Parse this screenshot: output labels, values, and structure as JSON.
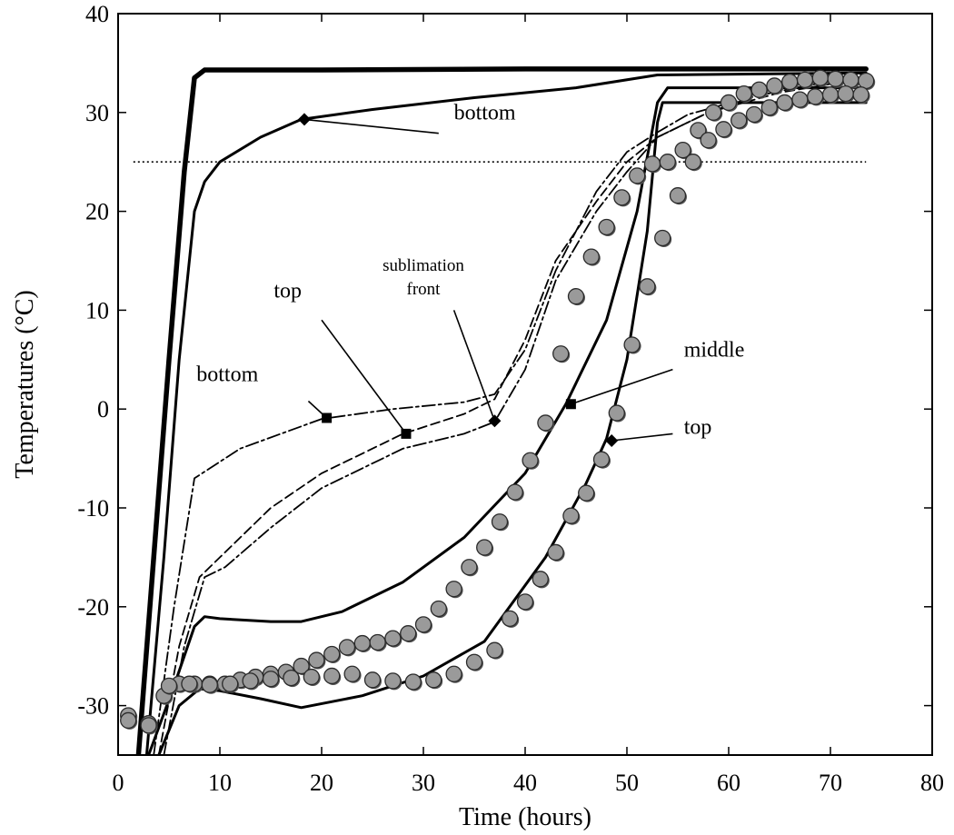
{
  "chart_data": {
    "type": "line",
    "title": "",
    "xlabel": "Time (hours)",
    "ylabel": "Temperatures (°C)",
    "xlim": [
      0,
      80
    ],
    "ylim": [
      -35,
      40
    ],
    "xticks": [
      0,
      10,
      20,
      30,
      40,
      50,
      60,
      70,
      80
    ],
    "yticks": [
      -30,
      -20,
      -10,
      0,
      10,
      20,
      30,
      40
    ],
    "grid": false,
    "legend": "none",
    "reference_line": {
      "y": 25
    },
    "series": [
      {
        "style": "heavy",
        "x": [
          2.0,
          3.5,
          5.0,
          6.5,
          7.5,
          8.5,
          20,
          40,
          55,
          73.5
        ],
        "y": [
          -35,
          -15,
          5,
          24,
          33.5,
          34.3,
          34.3,
          34.4,
          34.4,
          34.4
        ]
      },
      {
        "style": "solid",
        "x": [
          2.8,
          4.5,
          6.0,
          7.5,
          8.5,
          10,
          14,
          18,
          25,
          35,
          45,
          53,
          73.5
        ],
        "y": [
          -35,
          -15,
          5,
          20,
          23,
          25,
          27.5,
          29.3,
          30.3,
          31.5,
          32.5,
          33.8,
          34
        ]
      },
      {
        "style": "dashdot",
        "x": [
          3.5,
          5.5,
          7.5,
          9,
          12,
          16,
          20,
          27,
          34,
          37,
          40,
          43,
          47,
          50,
          53,
          56,
          62,
          68,
          73.5
        ],
        "y": [
          -35,
          -20,
          -7,
          -6,
          -4,
          -2.5,
          -1,
          0,
          0.7,
          1.5,
          6,
          14,
          22,
          26,
          28,
          29.8,
          31.5,
          32.8,
          33.5
        ]
      },
      {
        "style": "dashed",
        "x": [
          4.0,
          6,
          8,
          10,
          15,
          20,
          28,
          34,
          37,
          40,
          43,
          47,
          50,
          53,
          58,
          65,
          73.5
        ],
        "y": [
          -35,
          -24,
          -17,
          -15,
          -10,
          -6.5,
          -2.5,
          -0.5,
          1,
          7,
          15,
          21,
          25,
          27.5,
          30,
          32,
          33.5
        ]
      },
      {
        "style": "dashdot",
        "x": [
          4.5,
          6.5,
          8.5,
          10.5,
          15,
          20,
          28,
          34,
          37,
          40,
          43,
          47,
          50,
          53,
          58,
          65,
          73.5
        ],
        "y": [
          -35,
          -24,
          -17,
          -16,
          -12,
          -8,
          -4,
          -2.5,
          -1.3,
          4,
          13,
          20,
          24,
          27.5,
          30,
          32.5,
          34
        ]
      },
      {
        "style": "solid",
        "x": [
          3.0,
          5.5,
          7.5,
          8.5,
          10,
          15,
          18,
          22,
          28,
          34,
          40,
          44,
          48,
          51,
          53,
          54,
          73.5
        ],
        "y": [
          -35,
          -28,
          -22,
          -21,
          -21.2,
          -21.5,
          -21.5,
          -20.5,
          -17.5,
          -13,
          -6.5,
          0.5,
          9,
          20,
          31,
          32.5,
          32.5
        ]
      },
      {
        "style": "solid",
        "x": [
          4.0,
          6,
          8,
          10,
          14,
          18,
          24,
          30,
          36,
          42,
          46,
          48,
          50,
          52,
          53,
          53.5,
          73.5
        ],
        "y": [
          -35,
          -30,
          -28.3,
          -28.5,
          -29.3,
          -30.2,
          -29,
          -27,
          -23.5,
          -15,
          -7.5,
          -3,
          5,
          18,
          29,
          31,
          31
        ]
      },
      {
        "style": "markers",
        "x": [
          1.0,
          3.0,
          4.5,
          6.0,
          7.5,
          9.0,
          10.5,
          12.0,
          13.5,
          15.0,
          16.5,
          18.0,
          19.5,
          21.0,
          22.5,
          24.0,
          25.5,
          27.0,
          28.5,
          30.0,
          31.5,
          33.0,
          34.5,
          36.0,
          37.5,
          39.0,
          40.5,
          42.0,
          43.5,
          45.0,
          46.5,
          48.0,
          49.5,
          51.0,
          52.5,
          54.0,
          55.5,
          57.0,
          58.5,
          60.0,
          61.5,
          63.0,
          64.5,
          66.0,
          67.5,
          69.0,
          70.5,
          72.0,
          73.5
        ],
        "y": [
          -31.0,
          -31.8,
          -29.0,
          -27.8,
          -27.8,
          -27.8,
          -27.8,
          -27.4,
          -27.1,
          -26.8,
          -26.6,
          -26.0,
          -25.4,
          -24.8,
          -24.1,
          -23.7,
          -23.6,
          -23.2,
          -22.7,
          -21.8,
          -20.2,
          -18.2,
          -16.0,
          -14.0,
          -11.4,
          -8.4,
          -5.2,
          -1.4,
          5.6,
          11.4,
          15.4,
          18.4,
          21.4,
          23.6,
          24.8,
          25.0,
          26.2,
          28.2,
          30.0,
          31.0,
          31.9,
          32.3,
          32.7,
          33.1,
          33.3,
          33.5,
          33.4,
          33.3,
          33.2
        ]
      },
      {
        "style": "markers",
        "x": [
          1.0,
          3.0,
          5.0,
          7.0,
          9.0,
          11.0,
          13.0,
          15.0,
          17.0,
          19.0,
          21.0,
          23.0,
          25.0,
          27.0,
          29.0,
          31.0,
          33.0,
          35.0,
          37.0,
          38.5,
          40.0,
          41.5,
          43.0,
          44.5,
          46.0,
          47.5,
          49.0,
          50.5,
          52.0,
          53.5,
          55.0,
          56.5,
          58.0,
          59.5,
          61.0,
          62.5,
          64.0,
          65.5,
          67.0,
          68.5,
          70.0,
          71.5,
          73.0
        ],
        "y": [
          -31.5,
          -32.0,
          -28.0,
          -27.8,
          -27.9,
          -27.8,
          -27.5,
          -27.3,
          -27.2,
          -27.1,
          -27.0,
          -26.8,
          -27.4,
          -27.5,
          -27.6,
          -27.4,
          -26.8,
          -25.6,
          -24.4,
          -21.2,
          -19.5,
          -17.2,
          -14.5,
          -10.8,
          -8.5,
          -5.1,
          -0.4,
          6.5,
          12.4,
          17.3,
          21.6,
          25.0,
          27.2,
          28.3,
          29.2,
          29.8,
          30.5,
          31.0,
          31.3,
          31.6,
          31.8,
          31.9,
          31.8
        ]
      }
    ],
    "point_markers": [
      {
        "shape": "diamond",
        "x": 18.3,
        "y": 29.3
      },
      {
        "shape": "square",
        "x": 20.5,
        "y": -0.9
      },
      {
        "shape": "square",
        "x": 28.3,
        "y": -2.5
      },
      {
        "shape": "diamond",
        "x": 37.0,
        "y": -1.2
      },
      {
        "shape": "square",
        "x": 44.5,
        "y": 0.5
      },
      {
        "shape": "diamond",
        "x": 48.5,
        "y": -3.2
      }
    ],
    "annotations": [
      {
        "text": "bottom",
        "x": 33.0,
        "y": 29.3,
        "size": "normal",
        "anchor": "start",
        "target": [
          18.3,
          29.3
        ],
        "from": [
          31.5,
          27.9
        ]
      },
      {
        "text": "top",
        "x": 15.3,
        "y": 11.3,
        "size": "normal",
        "anchor": "start",
        "target": [
          28.3,
          -2.5
        ],
        "from": [
          20.0,
          9.0
        ]
      },
      {
        "text": "bottom",
        "x": 7.7,
        "y": 2.8,
        "size": "normal",
        "anchor": "start",
        "target": [
          20.5,
          -0.9
        ],
        "from": [
          18.7,
          0.8
        ]
      },
      {
        "lines": [
          "sublimation",
          "front"
        ],
        "x": 30.0,
        "y": 14.0,
        "size": "small",
        "anchor": "middle",
        "target": [
          37.0,
          -1.2
        ],
        "from": [
          33.0,
          10.0
        ]
      },
      {
        "text": "middle",
        "x": 55.6,
        "y": 5.3,
        "size": "normal",
        "anchor": "start",
        "target": [
          44.5,
          0.5
        ],
        "from": [
          54.5,
          4.0
        ]
      },
      {
        "text": "top",
        "x": 55.6,
        "y": -2.5,
        "size": "normal",
        "anchor": "start",
        "target": [
          48.5,
          -3.2
        ],
        "from": [
          54.5,
          -2.5
        ]
      }
    ]
  }
}
